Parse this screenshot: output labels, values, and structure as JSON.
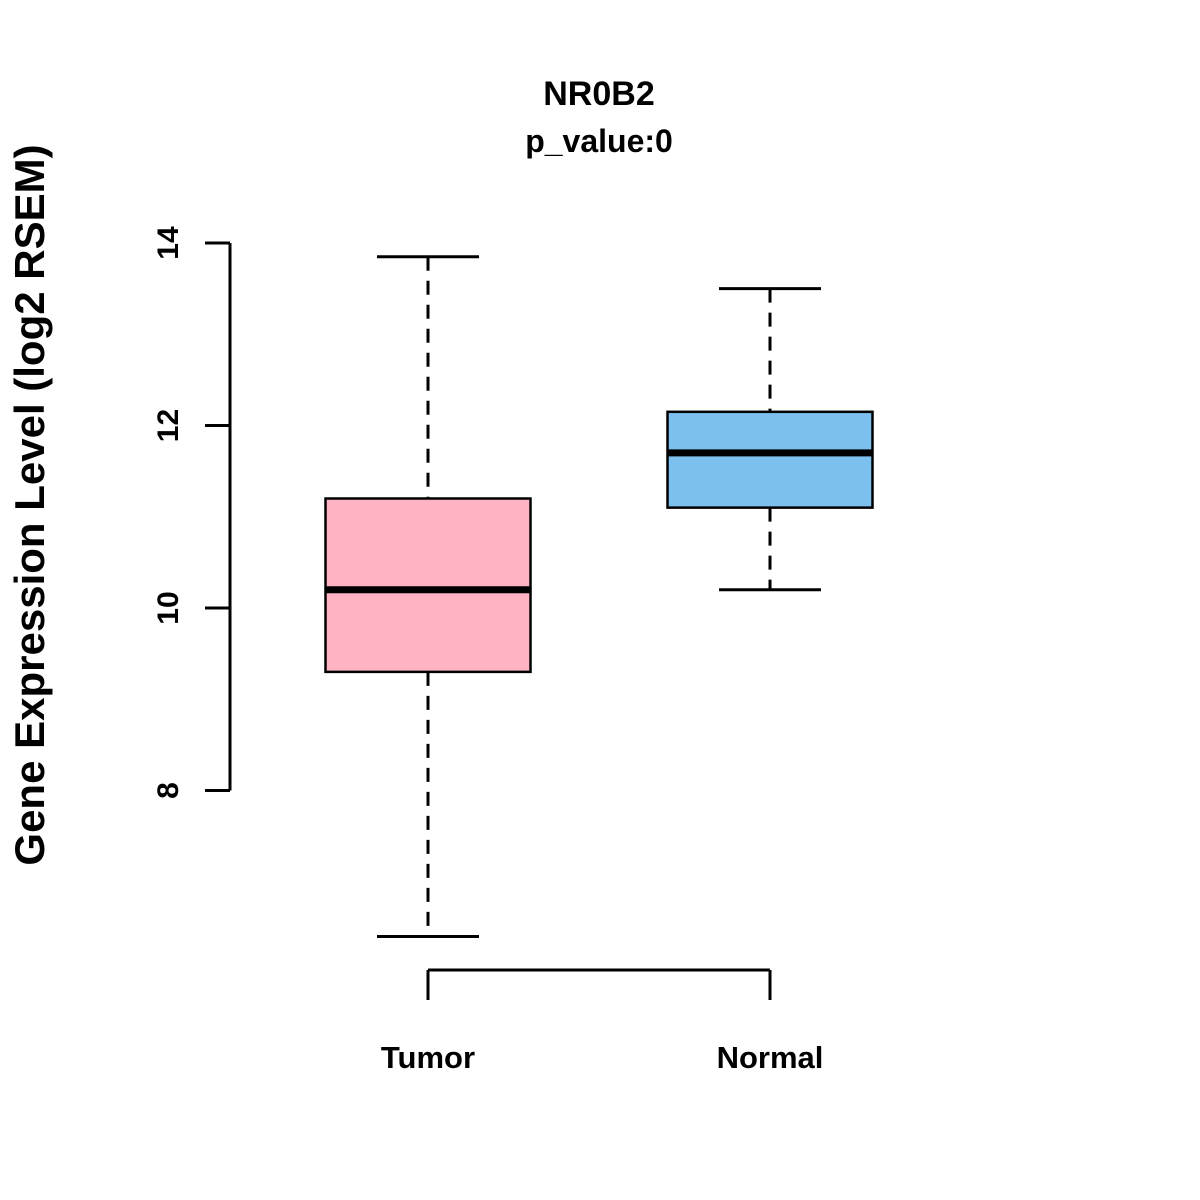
{
  "chart_data": {
    "type": "box",
    "title": "NR0B2",
    "subtitle": "p_value:0",
    "ylabel": "Gene Expression Level (log2 RSEM)",
    "xlabel": "",
    "yticks": [
      8,
      10,
      12,
      14
    ],
    "axis_range": [
      8,
      14
    ],
    "grid": false,
    "legend": "none",
    "categories": [
      "Tumor",
      "Normal"
    ],
    "series": [
      {
        "name": "Tumor",
        "color": "#FFB3C3",
        "whisker_low": 6.4,
        "q1": 9.3,
        "median": 10.2,
        "q3": 11.2,
        "whisker_high": 13.85
      },
      {
        "name": "Normal",
        "color": "#7CC0F0",
        "whisker_low": 10.2,
        "q1": 11.1,
        "median": 11.7,
        "q3": 12.15,
        "whisker_high": 13.5
      }
    ],
    "colors": {
      "tumor_box": "#FFB3C3",
      "normal_box": "#7CC0F0",
      "line": "#000000",
      "background": "#FFFFFF"
    }
  }
}
